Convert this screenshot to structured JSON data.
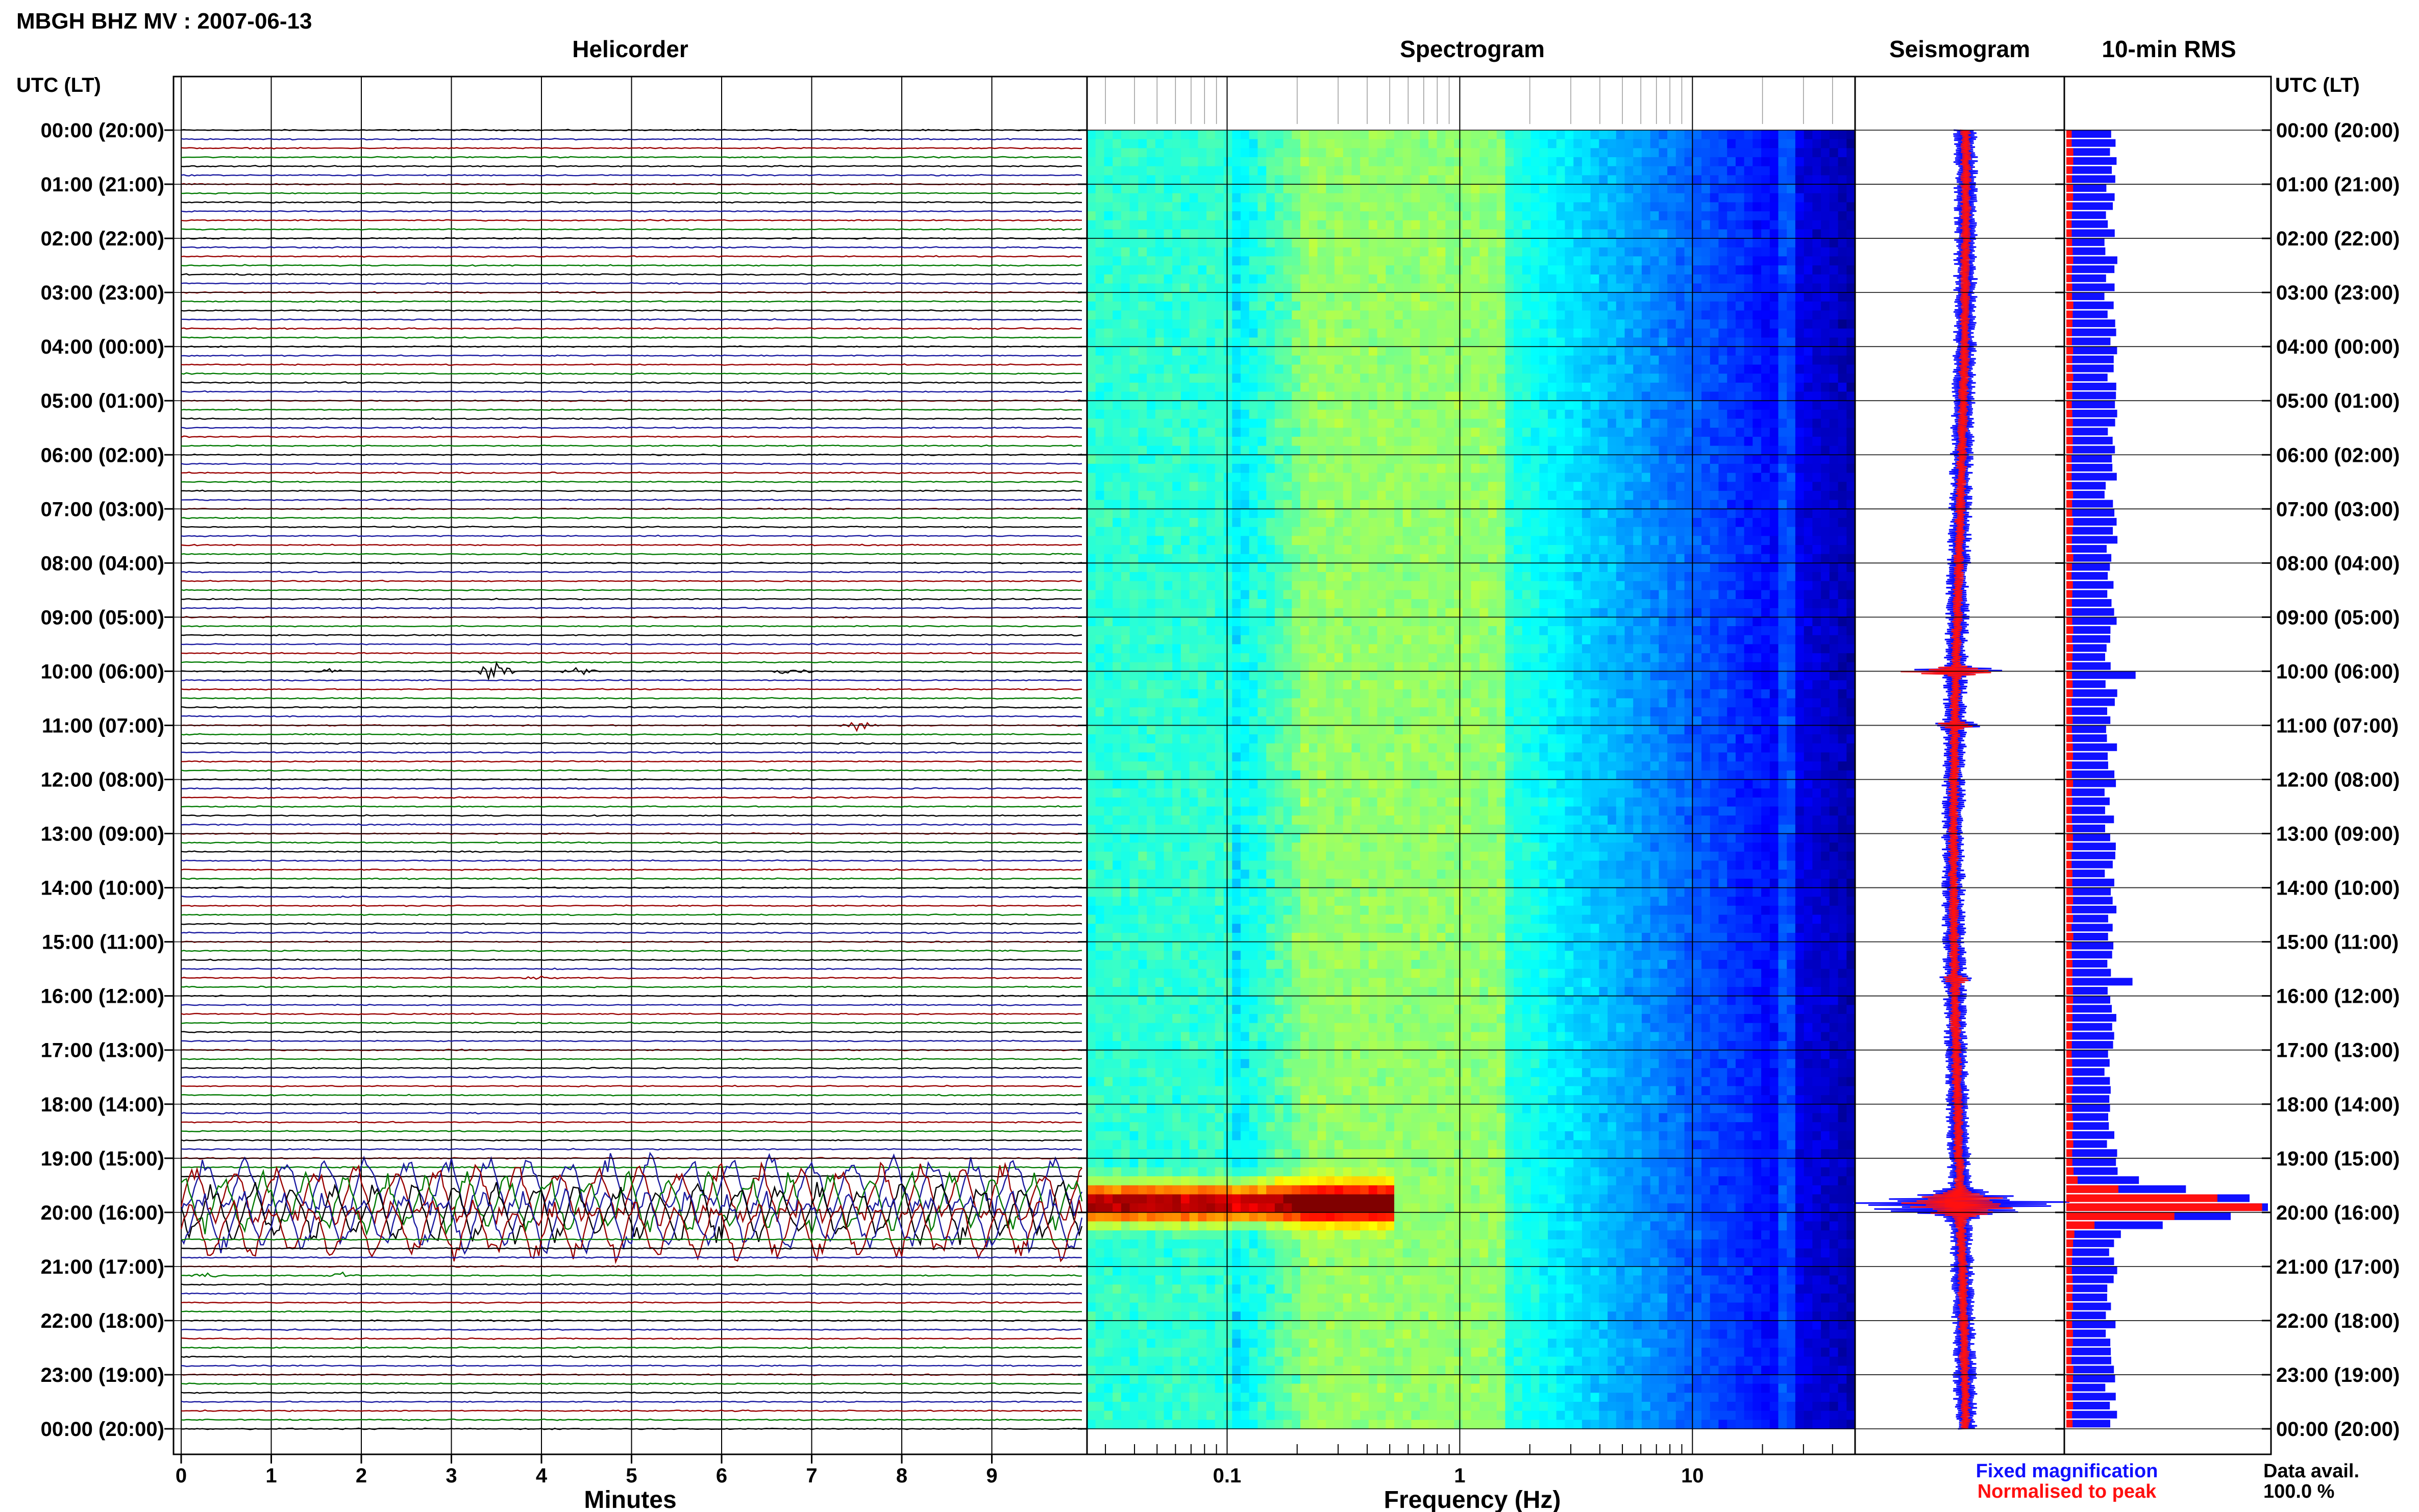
{
  "header": {
    "title": "MBGH BHZ MV : 2007-06-13",
    "utc_label_left": "UTC (LT)",
    "utc_label_right": "UTC (LT)"
  },
  "panels": {
    "helicorder": "Helicorder",
    "spectrogram": "Spectrogram",
    "seismogram": "Seismogram",
    "rms": "10-min RMS"
  },
  "legend": {
    "fixed_label": "Fixed magnification",
    "fixed_color": "#1010ff",
    "normalised_label": "Normalised to peak",
    "normalised_color": "#ff1010",
    "data_avail_label": "Data avail.",
    "data_avail_value": "100.0 %"
  },
  "chart_data": [
    {
      "type": "line",
      "panel": "helicorder",
      "xlabel": "Minutes",
      "x_ticks": [
        "0",
        "1",
        "2",
        "3",
        "4",
        "5",
        "6",
        "7",
        "8",
        "9"
      ],
      "xlim": [
        0,
        10
      ],
      "y_ticks": [
        "00:00 (20:00)",
        "01:00 (21:00)",
        "02:00 (22:00)",
        "03:00 (23:00)",
        "04:00 (00:00)",
        "05:00 (01:00)",
        "06:00 (02:00)",
        "07:00 (03:00)",
        "08:00 (04:00)",
        "09:00 (05:00)",
        "10:00 (06:00)",
        "11:00 (07:00)",
        "12:00 (08:00)",
        "13:00 (09:00)",
        "14:00 (10:00)",
        "15:00 (11:00)",
        "16:00 (12:00)",
        "17:00 (13:00)",
        "18:00 (14:00)",
        "19:00 (15:00)",
        "20:00 (16:00)",
        "21:00 (17:00)",
        "22:00 (18:00)",
        "23:00 (19:00)",
        "00:00 (20:00)"
      ],
      "rows_per_hour": 6,
      "trace_colors": [
        "#000000",
        "#1a1aa0",
        "#9a0000",
        "#007a00"
      ],
      "events": [
        {
          "hour": 10.0,
          "minute": 3.5,
          "amplitude": 0.6
        },
        {
          "hour": 10.0,
          "minute": 4.4,
          "amplitude": 0.3
        },
        {
          "hour": 10.0,
          "minute": 6.8,
          "amplitude": 0.35
        },
        {
          "hour": 10.0,
          "minute": 1.7,
          "amplitude": 0.15
        },
        {
          "hour": 11.0,
          "minute": 7.5,
          "amplitude": 0.4
        },
        {
          "hour": 15.67,
          "minute": 4.0,
          "amplitude": 0.15
        },
        {
          "hour": 21.17,
          "minute": 0.3,
          "amplitude": 0.15
        },
        {
          "hour": 21.17,
          "minute": 1.8,
          "amplitude": 0.15
        },
        {
          "hour": 19.5,
          "minute": 5.0,
          "amplitude": 3.0,
          "duration_rows": 6
        }
      ]
    },
    {
      "type": "heatmap",
      "panel": "spectrogram",
      "xlabel": "Frequency (Hz)",
      "x_scale": "log",
      "xlim": [
        0.025,
        50
      ],
      "x_ticks": [
        "0.1",
        "1",
        "10"
      ],
      "y_range_hours": [
        0,
        24
      ],
      "energy_band_hz": [
        0.2,
        1.5
      ],
      "event_hour": 19.75,
      "event_band_hz": [
        0.025,
        0.5
      ],
      "colormap": [
        "#00007f",
        "#0000ff",
        "#0080ff",
        "#00ffff",
        "#80ff80",
        "#ffff00",
        "#ff8000",
        "#ff0000",
        "#800000"
      ]
    },
    {
      "type": "line",
      "panel": "seismogram",
      "series": [
        {
          "name": "Fixed magnification",
          "color": "#1010ff"
        },
        {
          "name": "Normalised to peak",
          "color": "#ff1010"
        }
      ],
      "event_hour": 19.85,
      "event_peak": 1.0,
      "background_width": 0.12
    },
    {
      "type": "bar",
      "panel": "rms",
      "interval_minutes": 10,
      "series": [
        {
          "name": "Fixed magnification",
          "color": "#1010ff",
          "peak_hour": 19.8,
          "peak_value": 1.0,
          "baseline": 0.22
        },
        {
          "name": "Normalised to peak",
          "color": "#ff1010",
          "baseline": 0.03
        }
      ]
    }
  ]
}
